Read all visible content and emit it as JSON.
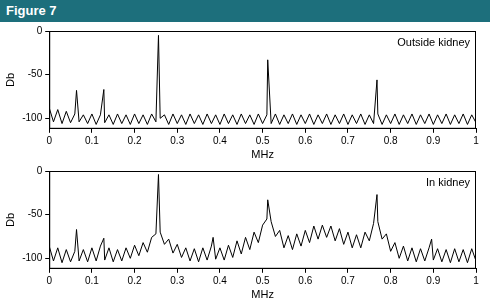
{
  "header": "Figure 7",
  "chart_data": [
    {
      "type": "line",
      "annotation": "Outside kidney",
      "x_label": "MHz",
      "y_label": "Db",
      "color": "#000000",
      "grid": false,
      "xlim": [
        0,
        1
      ],
      "ylim": [
        -112,
        0
      ],
      "xticks": [
        0,
        0.1,
        0.2,
        0.3,
        0.4,
        0.5,
        0.6,
        0.7,
        0.8,
        0.9,
        1
      ],
      "yticks": [
        -100,
        -50,
        0
      ],
      "x": [
        0,
        0.01,
        0.02,
        0.03,
        0.04,
        0.05,
        0.06,
        0.064,
        0.07,
        0.08,
        0.09,
        0.1,
        0.11,
        0.12,
        0.128,
        0.13,
        0.14,
        0.15,
        0.16,
        0.17,
        0.18,
        0.19,
        0.2,
        0.21,
        0.22,
        0.23,
        0.24,
        0.25,
        0.256,
        0.26,
        0.27,
        0.28,
        0.29,
        0.3,
        0.31,
        0.32,
        0.33,
        0.34,
        0.35,
        0.36,
        0.37,
        0.38,
        0.39,
        0.4,
        0.41,
        0.42,
        0.43,
        0.44,
        0.45,
        0.46,
        0.47,
        0.48,
        0.49,
        0.5,
        0.51,
        0.512,
        0.52,
        0.53,
        0.54,
        0.55,
        0.56,
        0.57,
        0.58,
        0.59,
        0.6,
        0.61,
        0.62,
        0.63,
        0.64,
        0.65,
        0.66,
        0.67,
        0.68,
        0.69,
        0.7,
        0.71,
        0.72,
        0.73,
        0.74,
        0.75,
        0.76,
        0.768,
        0.77,
        0.78,
        0.79,
        0.8,
        0.81,
        0.82,
        0.83,
        0.84,
        0.85,
        0.86,
        0.87,
        0.88,
        0.89,
        0.9,
        0.91,
        0.92,
        0.93,
        0.94,
        0.95,
        0.96,
        0.97,
        0.98,
        0.99,
        1
      ],
      "values": [
        -88,
        -104,
        -90,
        -106,
        -92,
        -105,
        -95,
        -68,
        -104,
        -96,
        -106,
        -95,
        -107,
        -96,
        -67,
        -105,
        -96,
        -107,
        -95,
        -106,
        -96,
        -107,
        -95,
        -106,
        -96,
        -107,
        -95,
        -104,
        -5,
        -100,
        -96,
        -107,
        -95,
        -106,
        -96,
        -107,
        -95,
        -106,
        -96,
        -107,
        -95,
        -106,
        -96,
        -107,
        -95,
        -106,
        -96,
        -107,
        -95,
        -106,
        -96,
        -107,
        -95,
        -106,
        -96,
        -33,
        -106,
        -95,
        -107,
        -96,
        -106,
        -95,
        -107,
        -96,
        -106,
        -95,
        -107,
        -96,
        -106,
        -95,
        -107,
        -96,
        -106,
        -95,
        -107,
        -96,
        -106,
        -95,
        -107,
        -96,
        -106,
        -56,
        -95,
        -107,
        -96,
        -106,
        -95,
        -107,
        -96,
        -106,
        -95,
        -107,
        -96,
        -106,
        -95,
        -107,
        -96,
        -106,
        -95,
        -107,
        -96,
        -106,
        -95,
        -107,
        -96,
        -105
      ]
    },
    {
      "type": "line",
      "annotation": "In kidney",
      "x_label": "MHz",
      "y_label": "Db",
      "color": "#000000",
      "grid": false,
      "xlim": [
        0,
        1
      ],
      "ylim": [
        -112,
        0
      ],
      "xticks": [
        0,
        0.1,
        0.2,
        0.3,
        0.4,
        0.5,
        0.6,
        0.7,
        0.8,
        0.9,
        1
      ],
      "yticks": [
        -100,
        -50,
        0
      ],
      "x": [
        0,
        0.01,
        0.02,
        0.03,
        0.04,
        0.05,
        0.06,
        0.064,
        0.07,
        0.08,
        0.09,
        0.1,
        0.11,
        0.12,
        0.128,
        0.13,
        0.14,
        0.15,
        0.16,
        0.17,
        0.18,
        0.19,
        0.2,
        0.21,
        0.22,
        0.23,
        0.24,
        0.25,
        0.256,
        0.26,
        0.27,
        0.28,
        0.29,
        0.3,
        0.31,
        0.32,
        0.33,
        0.34,
        0.35,
        0.36,
        0.37,
        0.38,
        0.384,
        0.39,
        0.4,
        0.41,
        0.42,
        0.43,
        0.44,
        0.45,
        0.46,
        0.47,
        0.48,
        0.49,
        0.5,
        0.51,
        0.512,
        0.52,
        0.53,
        0.54,
        0.55,
        0.56,
        0.57,
        0.58,
        0.59,
        0.6,
        0.61,
        0.62,
        0.63,
        0.64,
        0.65,
        0.66,
        0.67,
        0.68,
        0.69,
        0.7,
        0.71,
        0.72,
        0.73,
        0.74,
        0.75,
        0.76,
        0.768,
        0.77,
        0.78,
        0.79,
        0.8,
        0.81,
        0.82,
        0.83,
        0.84,
        0.85,
        0.86,
        0.87,
        0.88,
        0.89,
        0.896,
        0.9,
        0.91,
        0.92,
        0.93,
        0.94,
        0.95,
        0.96,
        0.97,
        0.98,
        0.99,
        1
      ],
      "values": [
        -86,
        -103,
        -88,
        -105,
        -90,
        -104,
        -92,
        -67,
        -103,
        -90,
        -104,
        -88,
        -103,
        -86,
        -77,
        -102,
        -88,
        -104,
        -90,
        -103,
        -88,
        -100,
        -85,
        -97,
        -82,
        -93,
        -76,
        -72,
        -4,
        -70,
        -84,
        -78,
        -94,
        -84,
        -99,
        -88,
        -103,
        -89,
        -104,
        -88,
        -102,
        -86,
        -76,
        -101,
        -88,
        -102,
        -85,
        -99,
        -80,
        -95,
        -76,
        -90,
        -70,
        -82,
        -62,
        -55,
        -33,
        -58,
        -75,
        -68,
        -88,
        -74,
        -90,
        -72,
        -86,
        -68,
        -82,
        -63,
        -78,
        -62,
        -76,
        -63,
        -80,
        -66,
        -84,
        -70,
        -88,
        -73,
        -88,
        -70,
        -80,
        -60,
        -27,
        -58,
        -78,
        -72,
        -92,
        -82,
        -100,
        -86,
        -103,
        -88,
        -104,
        -89,
        -103,
        -88,
        -78,
        -102,
        -89,
        -104,
        -90,
        -105,
        -89,
        -104,
        -90,
        -105,
        -89,
        -103
      ]
    }
  ]
}
